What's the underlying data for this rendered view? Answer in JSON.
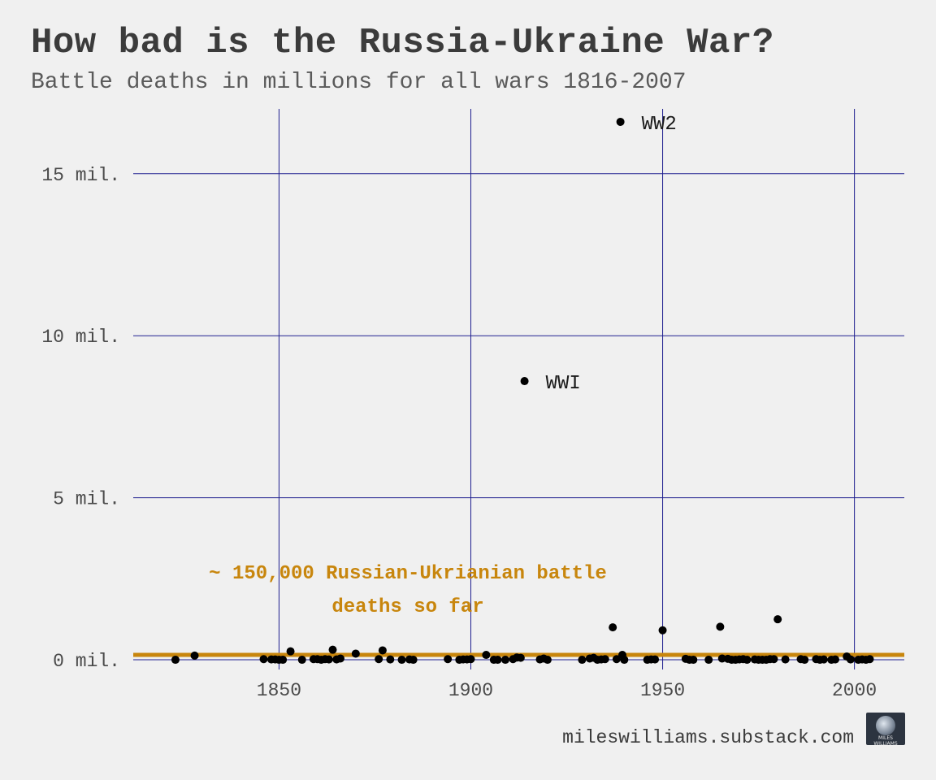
{
  "header": {
    "title": "How bad is the Russia-Ukraine War?",
    "subtitle": "Battle deaths in millions for all wars 1816-2007"
  },
  "footer": {
    "source": "mileswilliams.substack.com",
    "logo_text": "MILES WILLIAMS"
  },
  "colors": {
    "background": "#f0f0f0",
    "grid": "#1f1f8f",
    "points": "#000000",
    "reference_line": "#c8860d",
    "text": "#3b3b3b"
  },
  "chart_data": {
    "type": "scatter",
    "title": "How bad is the Russia-Ukraine War?",
    "subtitle": "Battle deaths in millions for all wars 1816-2007",
    "xlabel": "",
    "ylabel": "",
    "xlim": [
      1812,
      2013
    ],
    "ylim": [
      -0.3,
      17.0
    ],
    "x_ticks": [
      1850,
      1900,
      1950,
      2000
    ],
    "x_tick_labels": [
      "1850",
      "1900",
      "1950",
      "2000"
    ],
    "y_ticks": [
      0,
      5,
      10,
      15
    ],
    "y_tick_labels": [
      "0 mil.",
      "5 mil.",
      "10 mil.",
      "15 mil."
    ],
    "grid": true,
    "reference_line": {
      "y": 0.15,
      "label_line1": "~ 150,000 Russian-Ukrianian battle",
      "label_line2": "deaths so far"
    },
    "point_labels": [
      {
        "text": "WW2",
        "x": 1939,
        "y": 16.6
      },
      {
        "text": "WWI",
        "x": 1914,
        "y": 8.6
      }
    ],
    "points": [
      [
        1823,
        0.0
      ],
      [
        1828,
        0.13
      ],
      [
        1846,
        0.02
      ],
      [
        1848,
        0.01
      ],
      [
        1849,
        0.01
      ],
      [
        1850,
        0.0
      ],
      [
        1851,
        0.0
      ],
      [
        1853,
        0.26
      ],
      [
        1856,
        0.0
      ],
      [
        1859,
        0.02
      ],
      [
        1860,
        0.02
      ],
      [
        1861,
        0.0
      ],
      [
        1862,
        0.02
      ],
      [
        1863,
        0.01
      ],
      [
        1864,
        0.31
      ],
      [
        1865,
        0.01
      ],
      [
        1866,
        0.04
      ],
      [
        1870,
        0.19
      ],
      [
        1876,
        0.02
      ],
      [
        1877,
        0.29
      ],
      [
        1879,
        0.01
      ],
      [
        1882,
        0.0
      ],
      [
        1884,
        0.01
      ],
      [
        1885,
        0.0
      ],
      [
        1894,
        0.02
      ],
      [
        1897,
        0.0
      ],
      [
        1898,
        0.01
      ],
      [
        1899,
        0.01
      ],
      [
        1900,
        0.02
      ],
      [
        1904,
        0.15
      ],
      [
        1906,
        0.0
      ],
      [
        1907,
        0.0
      ],
      [
        1909,
        0.0
      ],
      [
        1911,
        0.02
      ],
      [
        1912,
        0.07
      ],
      [
        1913,
        0.06
      ],
      [
        1914,
        8.6
      ],
      [
        1918,
        0.01
      ],
      [
        1919,
        0.04
      ],
      [
        1920,
        0.0
      ],
      [
        1929,
        0.0
      ],
      [
        1931,
        0.04
      ],
      [
        1932,
        0.06
      ],
      [
        1933,
        0.0
      ],
      [
        1934,
        0.01
      ],
      [
        1935,
        0.02
      ],
      [
        1937,
        1.0
      ],
      [
        1938,
        0.02
      ],
      [
        1939,
        16.6
      ],
      [
        1939.5,
        0.15
      ],
      [
        1940,
        0.0
      ],
      [
        1946,
        0.0
      ],
      [
        1947,
        0.01
      ],
      [
        1948,
        0.01
      ],
      [
        1950,
        0.91
      ],
      [
        1956,
        0.03
      ],
      [
        1957,
        0.0
      ],
      [
        1958,
        0.0
      ],
      [
        1962,
        0.0
      ],
      [
        1965,
        1.02
      ],
      [
        1965.5,
        0.04
      ],
      [
        1967,
        0.03
      ],
      [
        1968,
        0.0
      ],
      [
        1969,
        0.0
      ],
      [
        1970,
        0.01
      ],
      [
        1971,
        0.02
      ],
      [
        1972,
        0.0
      ],
      [
        1974,
        0.01
      ],
      [
        1975,
        0.0
      ],
      [
        1976,
        0.0
      ],
      [
        1977,
        0.0
      ],
      [
        1978,
        0.02
      ],
      [
        1979,
        0.02
      ],
      [
        1980,
        1.25
      ],
      [
        1982,
        0.01
      ],
      [
        1986,
        0.02
      ],
      [
        1987,
        0.0
      ],
      [
        1990,
        0.02
      ],
      [
        1991,
        0.0
      ],
      [
        1992,
        0.01
      ],
      [
        1994,
        0.0
      ],
      [
        1995,
        0.01
      ],
      [
        1998,
        0.1
      ],
      [
        1999,
        0.01
      ],
      [
        2001,
        0.0
      ],
      [
        2002,
        0.01
      ],
      [
        2003,
        0.0
      ],
      [
        2004,
        0.02
      ]
    ]
  }
}
